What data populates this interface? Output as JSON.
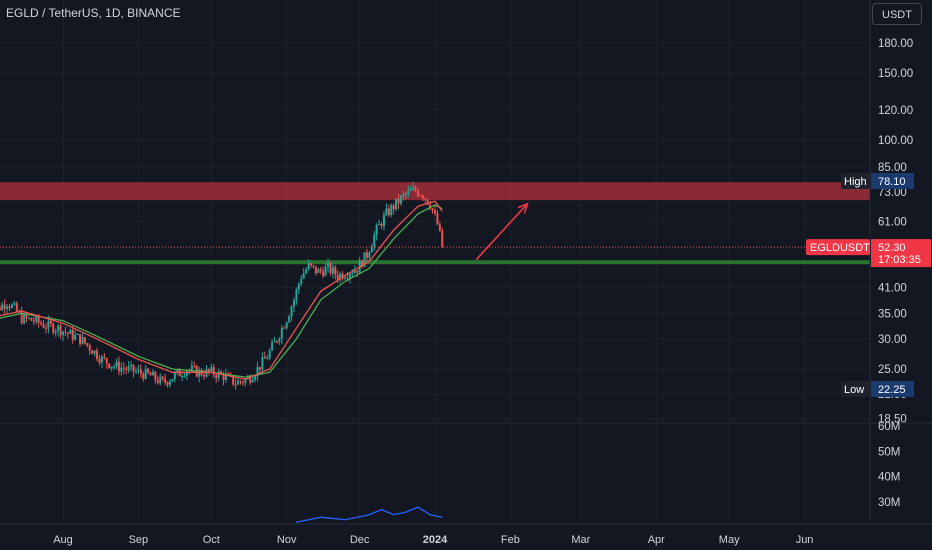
{
  "header": {
    "symbol_title": "EGLD / TetherUS, 1D, BINANCE",
    "currency": "USDT"
  },
  "colors": {
    "background": "#131722",
    "up": "#26a69a",
    "down": "#ef5350",
    "ma_fast": "#ef5350",
    "ma_slow": "#4caf50",
    "resistance_zone": "#b2323b",
    "support_zone": "#2f7d32",
    "arrow": "#f23645",
    "volume_line": "#2962ff"
  },
  "chart_data": {
    "type": "candlestick",
    "symbol": "EGLD / TetherUS",
    "interval": "1D",
    "exchange": "BINANCE",
    "y_scale": "log",
    "price_axis_ticks": [
      "180.00",
      "150.00",
      "120.00",
      "100.00",
      "85.00",
      "73.00",
      "61.00",
      "41.00",
      "35.00",
      "30.00",
      "25.00",
      "21.50",
      "18.50"
    ],
    "volume_axis_ticks": [
      "60M",
      "50M",
      "40M",
      "30M"
    ],
    "time_axis_labels": [
      "Aug",
      "Sep",
      "Oct",
      "Nov",
      "Dec",
      "2024",
      "Feb",
      "Mar",
      "Apr",
      "May",
      "Jun"
    ],
    "high": {
      "label": "High",
      "value": "78.10"
    },
    "low": {
      "label": "Low",
      "value": "22.25"
    },
    "last": {
      "symbol": "EGLDUSDT",
      "value": "52.30",
      "countdown": "17:03:35"
    },
    "resistance_zone": [
      69.5,
      77.5
    ],
    "support_zone": [
      47.2,
      48.3
    ],
    "close_series": [
      {
        "date": "2023-07-01",
        "close": 34.5
      },
      {
        "date": "2023-07-05",
        "close": 36.0
      },
      {
        "date": "2023-07-09",
        "close": 37.5
      },
      {
        "date": "2023-07-12",
        "close": 36.0
      },
      {
        "date": "2023-07-15",
        "close": 34.0
      },
      {
        "date": "2023-07-20",
        "close": 33.5
      },
      {
        "date": "2023-07-25",
        "close": 32.5
      },
      {
        "date": "2023-07-30",
        "close": 32.0
      },
      {
        "date": "2023-08-03",
        "close": 31.0
      },
      {
        "date": "2023-08-08",
        "close": 30.0
      },
      {
        "date": "2023-08-12",
        "close": 28.5
      },
      {
        "date": "2023-08-17",
        "close": 26.5
      },
      {
        "date": "2023-08-22",
        "close": 25.5
      },
      {
        "date": "2023-08-27",
        "close": 25.0
      },
      {
        "date": "2023-09-01",
        "close": 24.5
      },
      {
        "date": "2023-09-06",
        "close": 24.0
      },
      {
        "date": "2023-09-11",
        "close": 23.0
      },
      {
        "date": "2023-09-16",
        "close": 24.0
      },
      {
        "date": "2023-09-21",
        "close": 25.0
      },
      {
        "date": "2023-09-26",
        "close": 24.5
      },
      {
        "date": "2023-10-01",
        "close": 24.5
      },
      {
        "date": "2023-10-06",
        "close": 24.0
      },
      {
        "date": "2023-10-11",
        "close": 23.0
      },
      {
        "date": "2023-10-16",
        "close": 23.5
      },
      {
        "date": "2023-10-20",
        "close": 25.0
      },
      {
        "date": "2023-10-24",
        "close": 27.0
      },
      {
        "date": "2023-10-28",
        "close": 30.0
      },
      {
        "date": "2023-11-01",
        "close": 34.0
      },
      {
        "date": "2023-11-04",
        "close": 38.0
      },
      {
        "date": "2023-11-07",
        "close": 44.0
      },
      {
        "date": "2023-11-10",
        "close": 46.5
      },
      {
        "date": "2023-11-14",
        "close": 45.0
      },
      {
        "date": "2023-11-18",
        "close": 46.0
      },
      {
        "date": "2023-11-22",
        "close": 44.0
      },
      {
        "date": "2023-11-26",
        "close": 45.0
      },
      {
        "date": "2023-11-30",
        "close": 46.0
      },
      {
        "date": "2023-12-04",
        "close": 50.0
      },
      {
        "date": "2023-12-08",
        "close": 58.0
      },
      {
        "date": "2023-12-12",
        "close": 64.0
      },
      {
        "date": "2023-12-16",
        "close": 68.0
      },
      {
        "date": "2023-12-20",
        "close": 72.0
      },
      {
        "date": "2023-12-24",
        "close": 74.0
      },
      {
        "date": "2023-12-27",
        "close": 72.0
      },
      {
        "date": "2023-12-30",
        "close": 68.0
      },
      {
        "date": "2024-01-02",
        "close": 60.0
      },
      {
        "date": "2024-01-04",
        "close": 52.3
      }
    ],
    "ma_fast": [
      {
        "date": "2023-07-01",
        "value": 34.0
      },
      {
        "date": "2023-07-15",
        "value": 35.5
      },
      {
        "date": "2023-08-01",
        "value": 33.0
      },
      {
        "date": "2023-08-15",
        "value": 30.0
      },
      {
        "date": "2023-09-01",
        "value": 26.5
      },
      {
        "date": "2023-09-15",
        "value": 24.5
      },
      {
        "date": "2023-10-01",
        "value": 24.5
      },
      {
        "date": "2023-10-15",
        "value": 23.5
      },
      {
        "date": "2023-10-25",
        "value": 25.0
      },
      {
        "date": "2023-11-05",
        "value": 32.0
      },
      {
        "date": "2023-11-15",
        "value": 40.0
      },
      {
        "date": "2023-11-25",
        "value": 44.0
      },
      {
        "date": "2023-12-05",
        "value": 48.0
      },
      {
        "date": "2023-12-15",
        "value": 58.0
      },
      {
        "date": "2023-12-25",
        "value": 67.0
      },
      {
        "date": "2024-01-01",
        "value": 69.0
      },
      {
        "date": "2024-01-04",
        "value": 65.0
      }
    ],
    "ma_slow": [
      {
        "date": "2023-07-01",
        "value": 33.5
      },
      {
        "date": "2023-07-15",
        "value": 35.0
      },
      {
        "date": "2023-08-01",
        "value": 33.5
      },
      {
        "date": "2023-08-15",
        "value": 30.5
      },
      {
        "date": "2023-09-01",
        "value": 27.0
      },
      {
        "date": "2023-09-15",
        "value": 25.0
      },
      {
        "date": "2023-10-01",
        "value": 24.5
      },
      {
        "date": "2023-10-15",
        "value": 23.8
      },
      {
        "date": "2023-10-25",
        "value": 24.5
      },
      {
        "date": "2023-11-05",
        "value": 30.0
      },
      {
        "date": "2023-11-15",
        "value": 38.0
      },
      {
        "date": "2023-11-25",
        "value": 42.5
      },
      {
        "date": "2023-12-05",
        "value": 46.0
      },
      {
        "date": "2023-12-15",
        "value": 55.0
      },
      {
        "date": "2023-12-25",
        "value": 64.0
      },
      {
        "date": "2024-01-01",
        "value": 67.5
      },
      {
        "date": "2024-01-04",
        "value": 66.0
      }
    ],
    "volume_line": [
      {
        "date": "2023-11-05",
        "value": 22
      },
      {
        "date": "2023-11-15",
        "value": 24
      },
      {
        "date": "2023-11-25",
        "value": 23
      },
      {
        "date": "2023-12-05",
        "value": 25
      },
      {
        "date": "2023-12-10",
        "value": 27
      },
      {
        "date": "2023-12-15",
        "value": 25
      },
      {
        "date": "2023-12-20",
        "value": 26
      },
      {
        "date": "2023-12-25",
        "value": 28
      },
      {
        "date": "2023-12-30",
        "value": 25
      },
      {
        "date": "2024-01-04",
        "value": 24
      }
    ],
    "annotation_arrow": {
      "from": {
        "date": "2024-01-18",
        "price": 48.5
      },
      "to": {
        "date": "2024-02-08",
        "price": 68.0
      }
    }
  }
}
